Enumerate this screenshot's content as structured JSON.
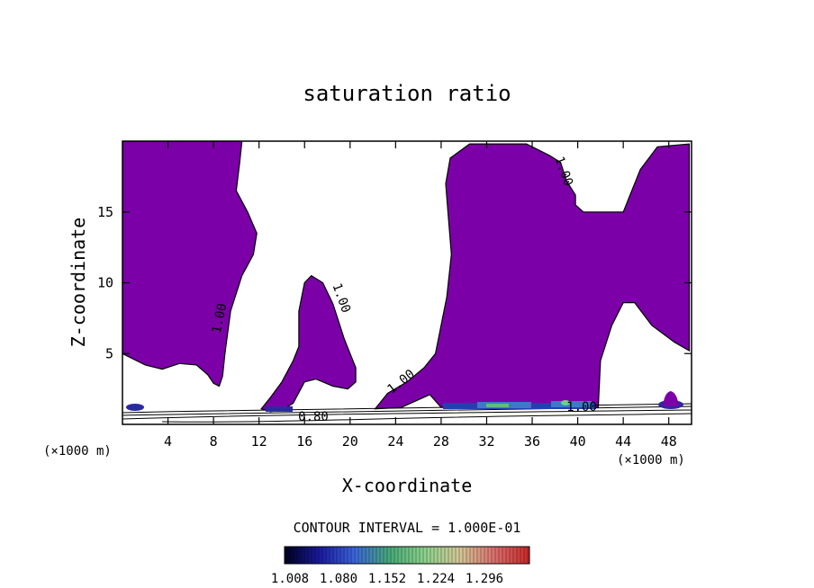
{
  "chart_data": {
    "type": "contour",
    "title": "saturation ratio",
    "xlabel": "X-coordinate",
    "ylabel": "Z-coordinate",
    "x_unit": "(×1000 m)",
    "xlim": [
      0,
      50
    ],
    "ylim": [
      0,
      20
    ],
    "x_ticks": [
      4,
      8,
      12,
      16,
      20,
      24,
      28,
      32,
      36,
      40,
      44,
      48
    ],
    "y_ticks": [
      5,
      10,
      15
    ],
    "contour_interval_text": "CONTOUR INTERVAL = 1.000E-01",
    "contour_labels": [
      "1.00",
      "1.00",
      "1.00",
      "1.00",
      "1.00",
      "0.80"
    ],
    "filled_region": {
      "threshold": 1.0,
      "color": "#7b00a8"
    },
    "regions": [
      {
        "name": "left-supersaturated-region",
        "outline": [
          [
            0,
            5
          ],
          [
            2,
            4.2
          ],
          [
            3.5,
            3.9
          ],
          [
            5,
            4.3
          ],
          [
            6.5,
            4.2
          ],
          [
            7.5,
            3.5
          ],
          [
            8,
            2.9
          ],
          [
            8.5,
            2.7
          ],
          [
            8.8,
            3.4
          ],
          [
            9,
            5
          ],
          [
            9.5,
            8
          ],
          [
            10.5,
            10.5
          ],
          [
            11.5,
            12
          ],
          [
            11.8,
            13.5
          ],
          [
            11,
            15
          ],
          [
            10,
            16.5
          ],
          [
            10.3,
            18.5
          ],
          [
            10.5,
            20
          ],
          [
            0,
            20
          ]
        ]
      },
      {
        "name": "middle-supersaturated-region",
        "outline": [
          [
            12.2,
            1.1
          ],
          [
            13,
            1.9
          ],
          [
            14,
            3
          ],
          [
            15,
            4.5
          ],
          [
            15.5,
            5.5
          ],
          [
            15.5,
            8
          ],
          [
            16,
            10
          ],
          [
            16.6,
            10.5
          ],
          [
            17.6,
            10
          ],
          [
            18.5,
            8.5
          ],
          [
            19.5,
            6
          ],
          [
            20.5,
            4
          ],
          [
            20.5,
            3
          ],
          [
            19.8,
            2.5
          ],
          [
            18.5,
            2.7
          ],
          [
            17,
            3.2
          ],
          [
            16,
            3
          ],
          [
            15,
            1.5
          ],
          [
            14,
            1
          ],
          [
            13,
            0.9
          ]
        ]
      },
      {
        "name": "right-supersaturated-region",
        "outline": [
          [
            22.2,
            1.1
          ],
          [
            23.3,
            2.2
          ],
          [
            25,
            3
          ],
          [
            26.5,
            4
          ],
          [
            27.5,
            5
          ],
          [
            28,
            7
          ],
          [
            28.5,
            9
          ],
          [
            28.9,
            12
          ],
          [
            28.6,
            15
          ],
          [
            28.4,
            17
          ],
          [
            28.8,
            18.8
          ],
          [
            30.5,
            19.8
          ],
          [
            35.5,
            19.8
          ],
          [
            37.5,
            19
          ],
          [
            38.5,
            18.5
          ],
          [
            39,
            17.2
          ],
          [
            39.8,
            16.2
          ],
          [
            39.8,
            15.5
          ],
          [
            40.5,
            15
          ],
          [
            44,
            15
          ],
          [
            44.5,
            16
          ],
          [
            45.5,
            18
          ],
          [
            47,
            19.6
          ],
          [
            49.8,
            19.8
          ],
          [
            49.8,
            5.2
          ],
          [
            48.5,
            5.8
          ],
          [
            46.5,
            7
          ],
          [
            45,
            8.6
          ],
          [
            44,
            8.6
          ],
          [
            43,
            7
          ],
          [
            42,
            4.5
          ],
          [
            41.8,
            1.2
          ],
          [
            28,
            1.2
          ],
          [
            27,
            2.1
          ],
          [
            24.5,
            1.2
          ]
        ]
      }
    ],
    "colorbar": {
      "ticks": [
        "1.008",
        "1.080",
        "1.152",
        "1.224",
        "1.296"
      ],
      "colors": [
        "#000020",
        "#1a1aa0",
        "#3c64dc",
        "#46aa78",
        "#8cd28c",
        "#d2c896",
        "#dc6e6e",
        "#c82828"
      ]
    }
  }
}
